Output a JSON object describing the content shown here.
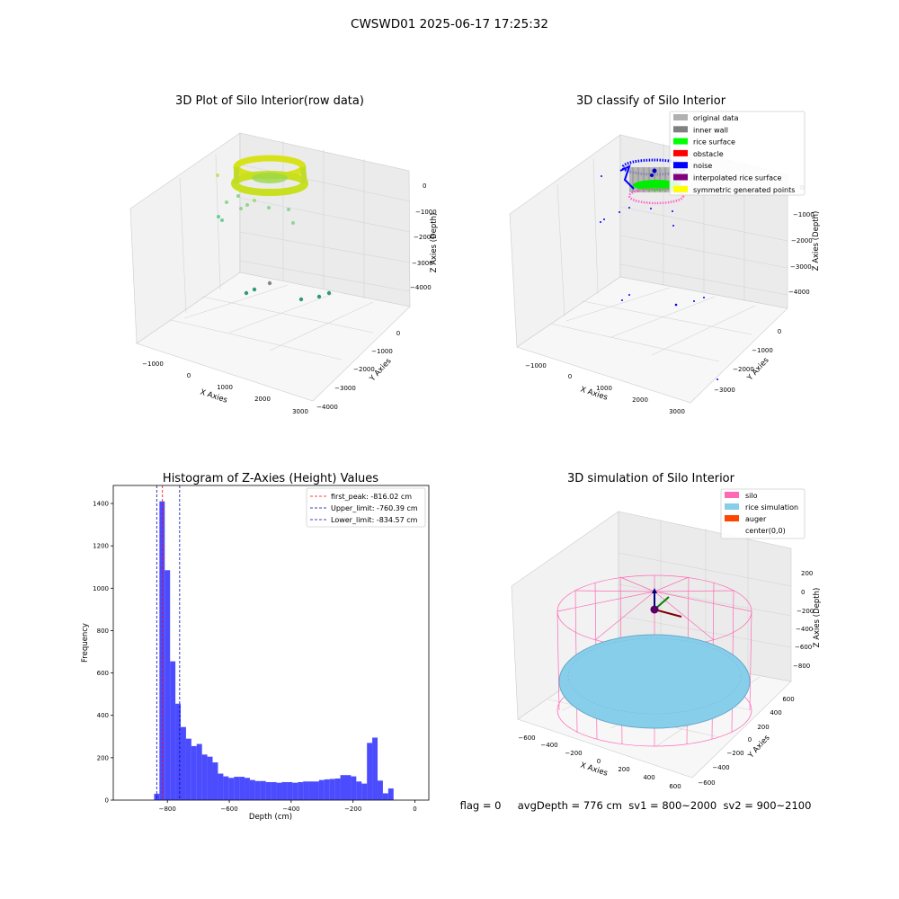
{
  "figure": {
    "suptitle": "CWSWD01 2025-06-17 17:25:32",
    "status_text": "flag = 0     avgDepth = 776 cm  sv1 = 800~2000  sv2 = 900~2100"
  },
  "colors": {
    "histogram_bar": "#0000ff",
    "first_peak_line": "#ff0000",
    "limit_lines": "#0000aa",
    "silo_wire": "#ff69b4",
    "rice_simulation": "#87ceeb",
    "auger": "#ff4500"
  },
  "chart_data": [
    {
      "type": "scatter3d",
      "title": "3D Plot of Silo Interior(row data)",
      "xlabel": "X Axies",
      "ylabel": "Y Axies",
      "zlabel": "Z Axies (Depth)",
      "xticks": [
        "−1000",
        "0",
        "1000",
        "2000",
        "3000"
      ],
      "yticks": [
        "0",
        "−1000",
        "−2000",
        "−3000",
        "−4000"
      ],
      "zticks": [
        "0",
        "−1000",
        "−2000",
        "−3000",
        "−4000"
      ],
      "grid": true,
      "colormap": "viridis"
    },
    {
      "type": "scatter3d",
      "title": "3D classify of Silo Interior",
      "xlabel": "X Axies",
      "ylabel": "Y Axies",
      "zlabel": "Z Axies (Depth)",
      "xticks": [
        "−1000",
        "0",
        "1000",
        "2000",
        "3000"
      ],
      "yticks": [
        "0",
        "−1000",
        "−2000",
        "−3000"
      ],
      "zticks": [
        "0",
        "−1000",
        "−2000",
        "−3000",
        "−4000"
      ],
      "grid": true,
      "legend_position": "top-right",
      "legend": [
        {
          "label": "original data",
          "color": "#b0b0b0"
        },
        {
          "label": "inner wall",
          "color": "#808080"
        },
        {
          "label": "rice surface",
          "color": "#00ff00"
        },
        {
          "label": "obstacle",
          "color": "#ff0000"
        },
        {
          "label": "noise",
          "color": "#0000ff"
        },
        {
          "label": "interpolated rice surface",
          "color": "#800080"
        },
        {
          "label": "symmetric generated points",
          "color": "#ffff00"
        }
      ]
    },
    {
      "type": "bar",
      "title": "Histogram of Z-Axies (Height) Values",
      "xlabel": "Depth (cm)",
      "ylabel": "Frequency",
      "xlim": [
        -975,
        45
      ],
      "ylim": [
        0,
        1485
      ],
      "xticks": [
        {
          "value": -800,
          "label": "−800"
        },
        {
          "value": -600,
          "label": "−600"
        },
        {
          "value": -400,
          "label": "−400"
        },
        {
          "value": -200,
          "label": "−200"
        },
        {
          "value": 0,
          "label": "0"
        }
      ],
      "yticks": [
        {
          "value": 0,
          "label": "0"
        },
        {
          "value": 200,
          "label": "200"
        },
        {
          "value": 400,
          "label": "400"
        },
        {
          "value": 600,
          "label": "600"
        },
        {
          "value": 800,
          "label": "800"
        },
        {
          "value": 1000,
          "label": "1000"
        },
        {
          "value": 1200,
          "label": "1200"
        },
        {
          "value": 1400,
          "label": "1400"
        }
      ],
      "grid": false,
      "bin_width": 17.2,
      "bin_start": -843,
      "values": [
        30,
        1410,
        1085,
        655,
        455,
        345,
        290,
        255,
        265,
        215,
        205,
        178,
        125,
        112,
        105,
        110,
        110,
        105,
        95,
        90,
        90,
        85,
        85,
        82,
        85,
        85,
        82,
        85,
        88,
        88,
        88,
        95,
        98,
        100,
        102,
        118,
        118,
        112,
        88,
        78,
        270,
        295,
        92,
        32,
        55
      ],
      "vlines": [
        {
          "label": "first_peak: -816.02 cm",
          "x": -816.02,
          "color_key": "first_peak_line"
        },
        {
          "label": "Upper_limit: -760.39 cm",
          "x": -760.39,
          "color_key": "limit_lines"
        },
        {
          "label": "Lower_limit: -834.57 cm",
          "x": -834.57,
          "color_key": "limit_lines"
        }
      ],
      "legend_position": "top-right"
    },
    {
      "type": "surface3d",
      "title": "3D simulation of Silo Interior",
      "xlabel": "X Axies",
      "ylabel": "Y Axies",
      "zlabel": "Z Axies (Depth)",
      "xticks": [
        "−600",
        "−400",
        "−200",
        "0",
        "200",
        "400",
        "600"
      ],
      "yticks": [
        "600",
        "400",
        "200",
        "0",
        "−200",
        "−400",
        "−600"
      ],
      "zticks": [
        "200",
        "0",
        "−200",
        "−400",
        "−600",
        "−800"
      ],
      "grid": true,
      "legend_position": "top-right",
      "legend": [
        {
          "label": "silo",
          "color": "#ff69b4"
        },
        {
          "label": "rice simulation",
          "color": "#87ceeb"
        },
        {
          "label": "auger",
          "color": "#ff4500"
        },
        {
          "label": "center(0,0)",
          "color": ""
        }
      ]
    }
  ]
}
